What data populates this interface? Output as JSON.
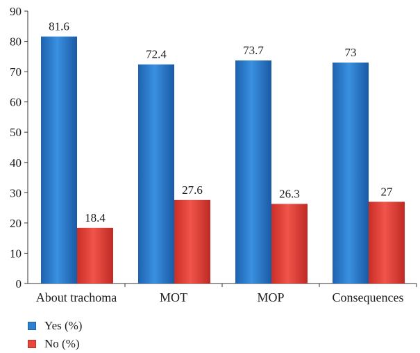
{
  "chart_data": {
    "type": "bar",
    "categories": [
      "About trachoma",
      "MOT",
      "MOP",
      "Consequences"
    ],
    "series": [
      {
        "name": "Yes (%)",
        "values": [
          81.6,
          72.4,
          73.7,
          73
        ],
        "labels": [
          "81.6",
          "72.4",
          "73.7",
          "73"
        ],
        "color": "#2f7fd1"
      },
      {
        "name": "No (%)",
        "values": [
          18.4,
          27.6,
          26.3,
          27
        ],
        "labels": [
          "18.4",
          "27.6",
          "26.3",
          "27"
        ],
        "color": "#e8453c"
      }
    ],
    "yticks": [
      "0",
      "10",
      "20",
      "30",
      "40",
      "50",
      "60",
      "70",
      "80",
      "90"
    ],
    "ylim": [
      0,
      90
    ],
    "grid": false,
    "legend_position": "bottom-left"
  }
}
